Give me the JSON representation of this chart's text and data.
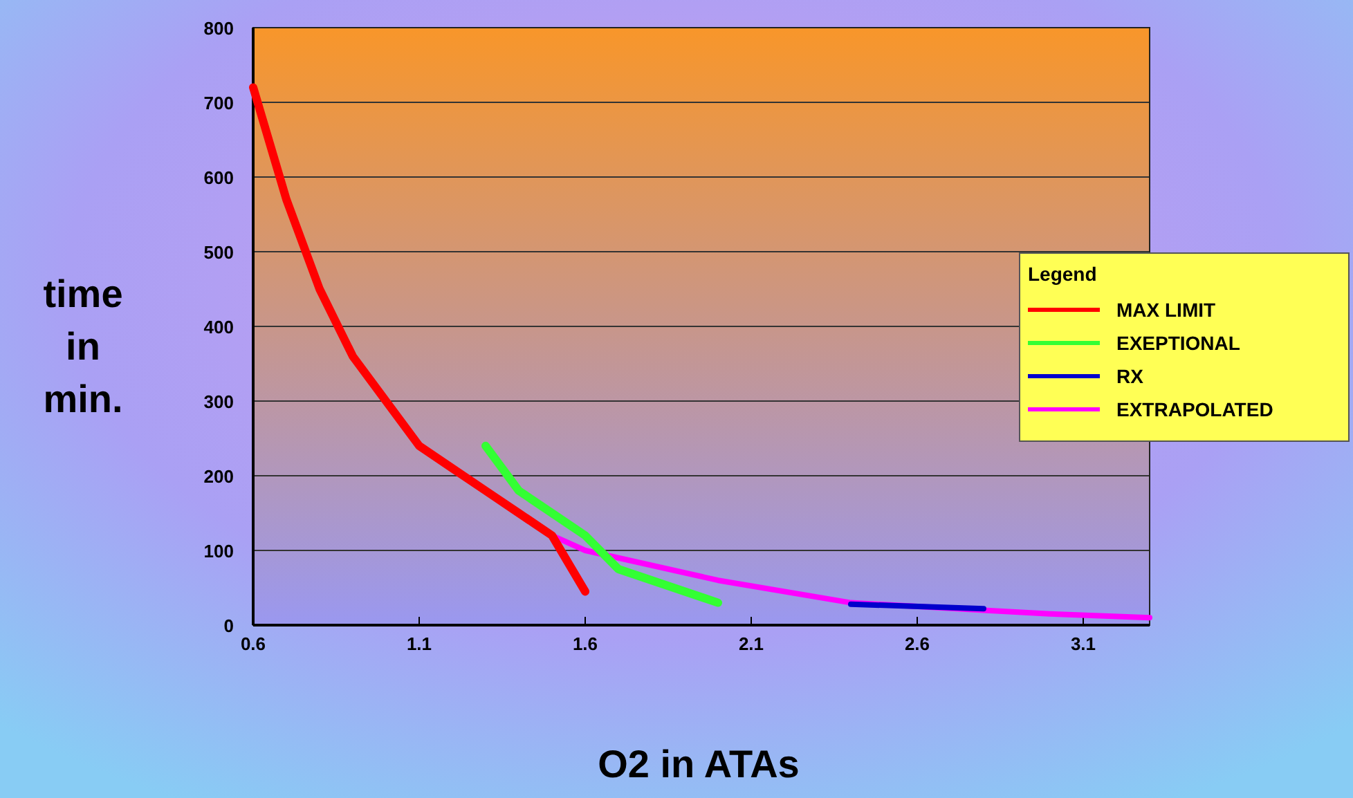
{
  "chart_data": {
    "type": "line",
    "xlabel": "O2 in ATAs",
    "ylabel": "time in min.",
    "legend_title": "Legend",
    "legend": "right",
    "grid": "y",
    "marker": "none",
    "line_style": "solid",
    "xlim": [
      0.6,
      3.3
    ],
    "xticks": [
      0.6,
      1.1,
      1.6,
      2.1,
      2.6,
      3.1
    ],
    "ylim": [
      0,
      800
    ],
    "yticks": [
      0,
      100,
      200,
      300,
      400,
      500,
      600,
      700,
      800
    ],
    "series": [
      {
        "name": "MAX LIMIT",
        "color": "#ff0000",
        "x": [
          0.6,
          0.7,
          0.8,
          0.9,
          1.0,
          1.1,
          1.2,
          1.3,
          1.4,
          1.5,
          1.6
        ],
        "values": [
          720,
          570,
          450,
          360,
          300,
          240,
          210,
          180,
          150,
          120,
          45
        ]
      },
      {
        "name": "EXEPTIONAL",
        "color": "#33ff33",
        "x": [
          1.3,
          1.4,
          1.5,
          1.6,
          1.7,
          2.0
        ],
        "values": [
          240,
          180,
          150,
          120,
          75,
          30
        ]
      },
      {
        "name": "RX",
        "color": "#0000cc",
        "x": [
          2.4,
          2.8
        ],
        "values": [
          28,
          22
        ]
      },
      {
        "name": "EXTRAPOLATED",
        "color": "#ff00ff",
        "x": [
          1.5,
          1.6,
          2.0,
          2.4,
          2.8,
          3.0,
          3.3
        ],
        "values": [
          120,
          100,
          60,
          30,
          20,
          15,
          10
        ]
      }
    ]
  }
}
